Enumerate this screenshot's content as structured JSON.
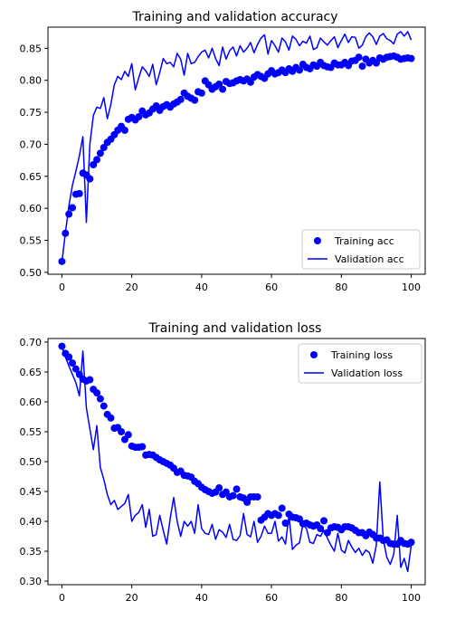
{
  "chart_data": [
    {
      "type": "line",
      "title": "Training and validation accuracy",
      "xlabel": "",
      "ylabel": "",
      "xlim": [
        -4,
        104
      ],
      "ylim": [
        0.497,
        0.883
      ],
      "xticks": [
        0,
        20,
        40,
        60,
        80,
        100
      ],
      "yticks": [
        0.5,
        0.55,
        0.6,
        0.65,
        0.7,
        0.75,
        0.8,
        0.85
      ],
      "ytick_format": 2,
      "legend_position": "lower right",
      "series": [
        {
          "name": "Training acc",
          "style": "dots",
          "color": "#0000ff",
          "values": [
            0.517,
            0.561,
            0.591,
            0.601,
            0.622,
            0.623,
            0.655,
            0.652,
            0.646,
            0.668,
            0.676,
            0.686,
            0.695,
            0.703,
            0.708,
            0.715,
            0.722,
            0.728,
            0.722,
            0.739,
            0.742,
            0.738,
            0.743,
            0.752,
            0.746,
            0.749,
            0.755,
            0.76,
            0.753,
            0.759,
            0.762,
            0.758,
            0.763,
            0.766,
            0.77,
            0.78,
            0.775,
            0.772,
            0.769,
            0.782,
            0.78,
            0.799,
            0.793,
            0.786,
            0.79,
            0.794,
            0.786,
            0.798,
            0.795,
            0.796,
            0.799,
            0.801,
            0.799,
            0.802,
            0.797,
            0.805,
            0.809,
            0.806,
            0.803,
            0.81,
            0.815,
            0.81,
            0.812,
            0.816,
            0.812,
            0.818,
            0.814,
            0.82,
            0.816,
            0.825,
            0.82,
            0.818,
            0.824,
            0.822,
            0.828,
            0.823,
            0.821,
            0.82,
            0.827,
            0.824,
            0.824,
            0.828,
            0.823,
            0.83,
            0.831,
            0.836,
            0.822,
            0.833,
            0.827,
            0.831,
            0.827,
            0.835,
            0.833,
            0.836,
            0.837,
            0.838,
            0.836,
            0.833,
            0.834,
            0.835,
            0.834
          ]
        },
        {
          "name": "Validation acc",
          "style": "line",
          "color": "#0000ff",
          "values": [
            0.516,
            0.562,
            0.604,
            0.636,
            0.658,
            0.682,
            0.712,
            0.578,
            0.7,
            0.745,
            0.758,
            0.756,
            0.773,
            0.74,
            0.762,
            0.793,
            0.806,
            0.801,
            0.814,
            0.806,
            0.826,
            0.785,
            0.804,
            0.821,
            0.815,
            0.806,
            0.825,
            0.793,
            0.812,
            0.834,
            0.826,
            0.828,
            0.821,
            0.842,
            0.833,
            0.808,
            0.842,
            0.826,
            0.828,
            0.837,
            0.844,
            0.847,
            0.835,
            0.85,
            0.834,
            0.823,
            0.852,
            0.833,
            0.846,
            0.852,
            0.838,
            0.854,
            0.844,
            0.85,
            0.859,
            0.843,
            0.856,
            0.866,
            0.871,
            0.841,
            0.862,
            0.854,
            0.844,
            0.866,
            0.86,
            0.847,
            0.869,
            0.864,
            0.854,
            0.861,
            0.858,
            0.869,
            0.848,
            0.851,
            0.866,
            0.86,
            0.855,
            0.862,
            0.868,
            0.851,
            0.862,
            0.872,
            0.859,
            0.868,
            0.867,
            0.85,
            0.855,
            0.868,
            0.874,
            0.868,
            0.856,
            0.869,
            0.873,
            0.865,
            0.862,
            0.857,
            0.872,
            0.876,
            0.869,
            0.876,
            0.863
          ]
        }
      ]
    },
    {
      "type": "line",
      "title": "Training and validation loss",
      "xlabel": "",
      "ylabel": "",
      "xlim": [
        -4,
        104
      ],
      "ylim": [
        0.294,
        0.706
      ],
      "xticks": [
        0,
        20,
        40,
        60,
        80,
        100
      ],
      "yticks": [
        0.3,
        0.35,
        0.4,
        0.45,
        0.5,
        0.55,
        0.6,
        0.65,
        0.7
      ],
      "ytick_format": 2,
      "legend_position": "upper right",
      "series": [
        {
          "name": "Training loss",
          "style": "dots",
          "color": "#0000ff",
          "values": [
            0.693,
            0.681,
            0.675,
            0.665,
            0.655,
            0.646,
            0.638,
            0.635,
            0.637,
            0.621,
            0.615,
            0.605,
            0.593,
            0.579,
            0.573,
            0.556,
            0.557,
            0.55,
            0.537,
            0.545,
            0.526,
            0.524,
            0.524,
            0.525,
            0.511,
            0.512,
            0.511,
            0.507,
            0.503,
            0.5,
            0.497,
            0.494,
            0.489,
            0.482,
            0.484,
            0.477,
            0.476,
            0.474,
            0.467,
            0.463,
            0.457,
            0.453,
            0.45,
            0.447,
            0.449,
            0.456,
            0.445,
            0.449,
            0.441,
            0.443,
            0.454,
            0.441,
            0.439,
            0.432,
            0.441,
            0.441,
            0.441,
            0.402,
            0.407,
            0.413,
            0.41,
            0.413,
            0.41,
            0.422,
            0.397,
            0.412,
            0.407,
            0.406,
            0.404,
            0.396,
            0.397,
            0.394,
            0.392,
            0.394,
            0.388,
            0.401,
            0.381,
            0.389,
            0.391,
            0.39,
            0.386,
            0.391,
            0.391,
            0.389,
            0.385,
            0.381,
            0.381,
            0.376,
            0.382,
            0.378,
            0.372,
            0.372,
            0.368,
            0.369,
            0.363,
            0.362,
            0.362,
            0.368,
            0.363,
            0.362,
            0.365
          ]
        },
        {
          "name": "Validation loss",
          "style": "line",
          "color": "#0000ff",
          "values": [
            0.693,
            0.675,
            0.66,
            0.646,
            0.632,
            0.61,
            0.685,
            0.59,
            0.555,
            0.52,
            0.56,
            0.49,
            0.47,
            0.445,
            0.428,
            0.435,
            0.42,
            0.425,
            0.43,
            0.445,
            0.4,
            0.41,
            0.415,
            0.428,
            0.39,
            0.42,
            0.375,
            0.378,
            0.41,
            0.385,
            0.362,
            0.405,
            0.44,
            0.4,
            0.375,
            0.4,
            0.392,
            0.4,
            0.38,
            0.428,
            0.388,
            0.38,
            0.378,
            0.395,
            0.37,
            0.386,
            0.382,
            0.373,
            0.395,
            0.37,
            0.368,
            0.376,
            0.413,
            0.378,
            0.374,
            0.4,
            0.365,
            0.375,
            0.392,
            0.38,
            0.38,
            0.4,
            0.367,
            0.374,
            0.362,
            0.41,
            0.353,
            0.36,
            0.364,
            0.395,
            0.388,
            0.365,
            0.363,
            0.378,
            0.375,
            0.385,
            0.372,
            0.36,
            0.35,
            0.38,
            0.352,
            0.347,
            0.368,
            0.357,
            0.348,
            0.355,
            0.343,
            0.352,
            0.348,
            0.33,
            0.36,
            0.466,
            0.37,
            0.34,
            0.328,
            0.345,
            0.41,
            0.323,
            0.338,
            0.316,
            0.36
          ]
        }
      ]
    }
  ]
}
